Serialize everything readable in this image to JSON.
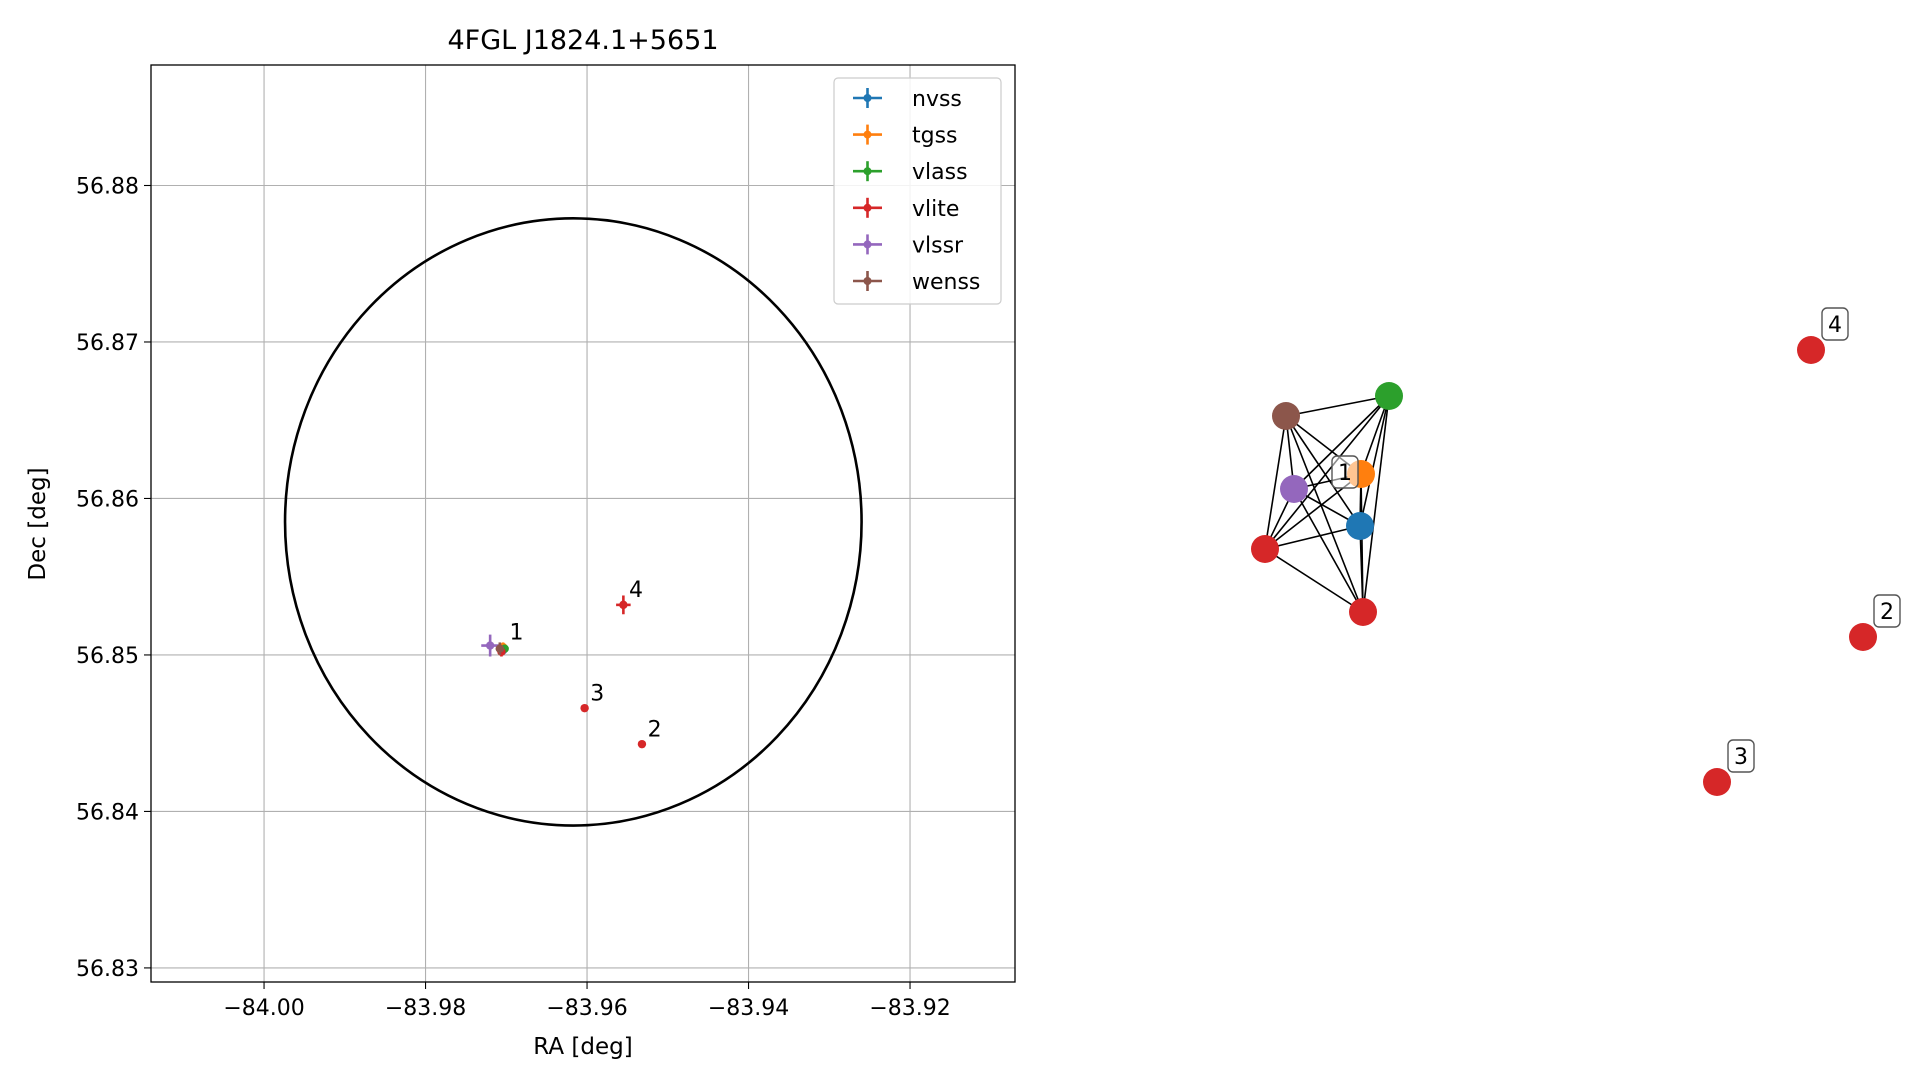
{
  "chart_data": [
    {
      "type": "scatter",
      "title": "4FGL J1824.1+5651",
      "xlabel": "RA [deg]",
      "ylabel": "Dec [deg]",
      "xlim": [
        -84.014,
        -83.907
      ],
      "ylim": [
        56.8291,
        56.8877
      ],
      "xticks": [
        -84.0,
        -83.98,
        -83.96,
        -83.94,
        -83.92
      ],
      "xtick_labels": [
        "−84.00",
        "−83.98",
        "−83.96",
        "−83.94",
        "−83.92"
      ],
      "yticks": [
        56.83,
        56.84,
        56.85,
        56.86,
        56.87,
        56.88
      ],
      "ytick_labels": [
        "56.83",
        "56.84",
        "56.85",
        "56.86",
        "56.87",
        "56.88"
      ],
      "grid": true,
      "legend_position": "top-right",
      "ellipse": {
        "center": [
          -83.9617,
          56.8585
        ],
        "radius_x": 0.0357,
        "radius_y": 0.0194,
        "color": "#000000"
      },
      "series": [
        {
          "name": "nvss",
          "color": "#1f77b4",
          "points": [
            {
              "x": -83.9704,
              "y": 56.8503,
              "xerr": 0.0004,
              "yerr": 0.0003
            }
          ]
        },
        {
          "name": "tgss",
          "color": "#ff7f0e",
          "points": [
            {
              "x": -83.9704,
              "y": 56.8505,
              "xerr": 0.0004,
              "yerr": 0.0003
            }
          ]
        },
        {
          "name": "vlass",
          "color": "#2ca02c",
          "points": [
            {
              "x": -83.9702,
              "y": 56.8504,
              "xerr": 0.0002,
              "yerr": 0.0002
            }
          ]
        },
        {
          "name": "vlite",
          "color": "#d62728",
          "points": [
            {
              "x": -83.9706,
              "y": 56.8502,
              "xerr": 0.0003,
              "yerr": 0.0003
            },
            {
              "x": -83.9532,
              "y": 56.8443,
              "xerr": 0.0002,
              "yerr": 0.0002
            },
            {
              "x": -83.9603,
              "y": 56.8466,
              "xerr": 0.0002,
              "yerr": 0.0002
            },
            {
              "x": -83.9555,
              "y": 56.8532,
              "xerr": 0.0009,
              "yerr": 0.0006
            }
          ]
        },
        {
          "name": "vlssr",
          "color": "#9467bd",
          "points": [
            {
              "x": -83.972,
              "y": 56.8506,
              "xerr": 0.0011,
              "yerr": 0.0007
            }
          ]
        },
        {
          "name": "wenss",
          "color": "#8c564b",
          "points": [
            {
              "x": -83.9708,
              "y": 56.8504,
              "xerr": 0.0005,
              "yerr": 0.0004
            }
          ]
        }
      ],
      "annotations": [
        {
          "text": "1",
          "x": -83.9696,
          "y": 56.851
        },
        {
          "text": "2",
          "x": -83.9525,
          "y": 56.8448
        },
        {
          "text": "3",
          "x": -83.9596,
          "y": 56.8471
        },
        {
          "text": "4",
          "x": -83.9548,
          "y": 56.8537
        }
      ]
    },
    {
      "type": "network",
      "nodes": [
        {
          "id": "wenss",
          "color": "#8c564b"
        },
        {
          "id": "vlass",
          "color": "#2ca02c"
        },
        {
          "id": "tgss",
          "color": "#ff7f0e",
          "label": "1"
        },
        {
          "id": "vlssr",
          "color": "#9467bd"
        },
        {
          "id": "nvss",
          "color": "#1f77b4"
        },
        {
          "id": "vlite-a",
          "color": "#d62728"
        },
        {
          "id": "vlite-b",
          "color": "#d62728"
        },
        {
          "id": "vlite-4",
          "color": "#d62728",
          "label": "4"
        },
        {
          "id": "vlite-2",
          "color": "#d62728",
          "label": "2"
        },
        {
          "id": "vlite-3",
          "color": "#d62728",
          "label": "3"
        }
      ],
      "edges": [
        [
          "wenss",
          "vlass"
        ],
        [
          "wenss",
          "tgss"
        ],
        [
          "wenss",
          "vlssr"
        ],
        [
          "wenss",
          "nvss"
        ],
        [
          "wenss",
          "vlite-a"
        ],
        [
          "wenss",
          "vlite-b"
        ],
        [
          "vlass",
          "tgss"
        ],
        [
          "vlass",
          "vlssr"
        ],
        [
          "vlass",
          "nvss"
        ],
        [
          "vlass",
          "vlite-a"
        ],
        [
          "vlass",
          "vlite-b"
        ],
        [
          "tgss",
          "vlssr"
        ],
        [
          "tgss",
          "nvss"
        ],
        [
          "tgss",
          "vlite-a"
        ],
        [
          "tgss",
          "vlite-b"
        ],
        [
          "vlssr",
          "nvss"
        ],
        [
          "vlssr",
          "vlite-a"
        ],
        [
          "vlssr",
          "vlite-b"
        ],
        [
          "nvss",
          "vlite-a"
        ],
        [
          "nvss",
          "vlite-b"
        ],
        [
          "vlite-a",
          "vlite-b"
        ]
      ]
    }
  ]
}
